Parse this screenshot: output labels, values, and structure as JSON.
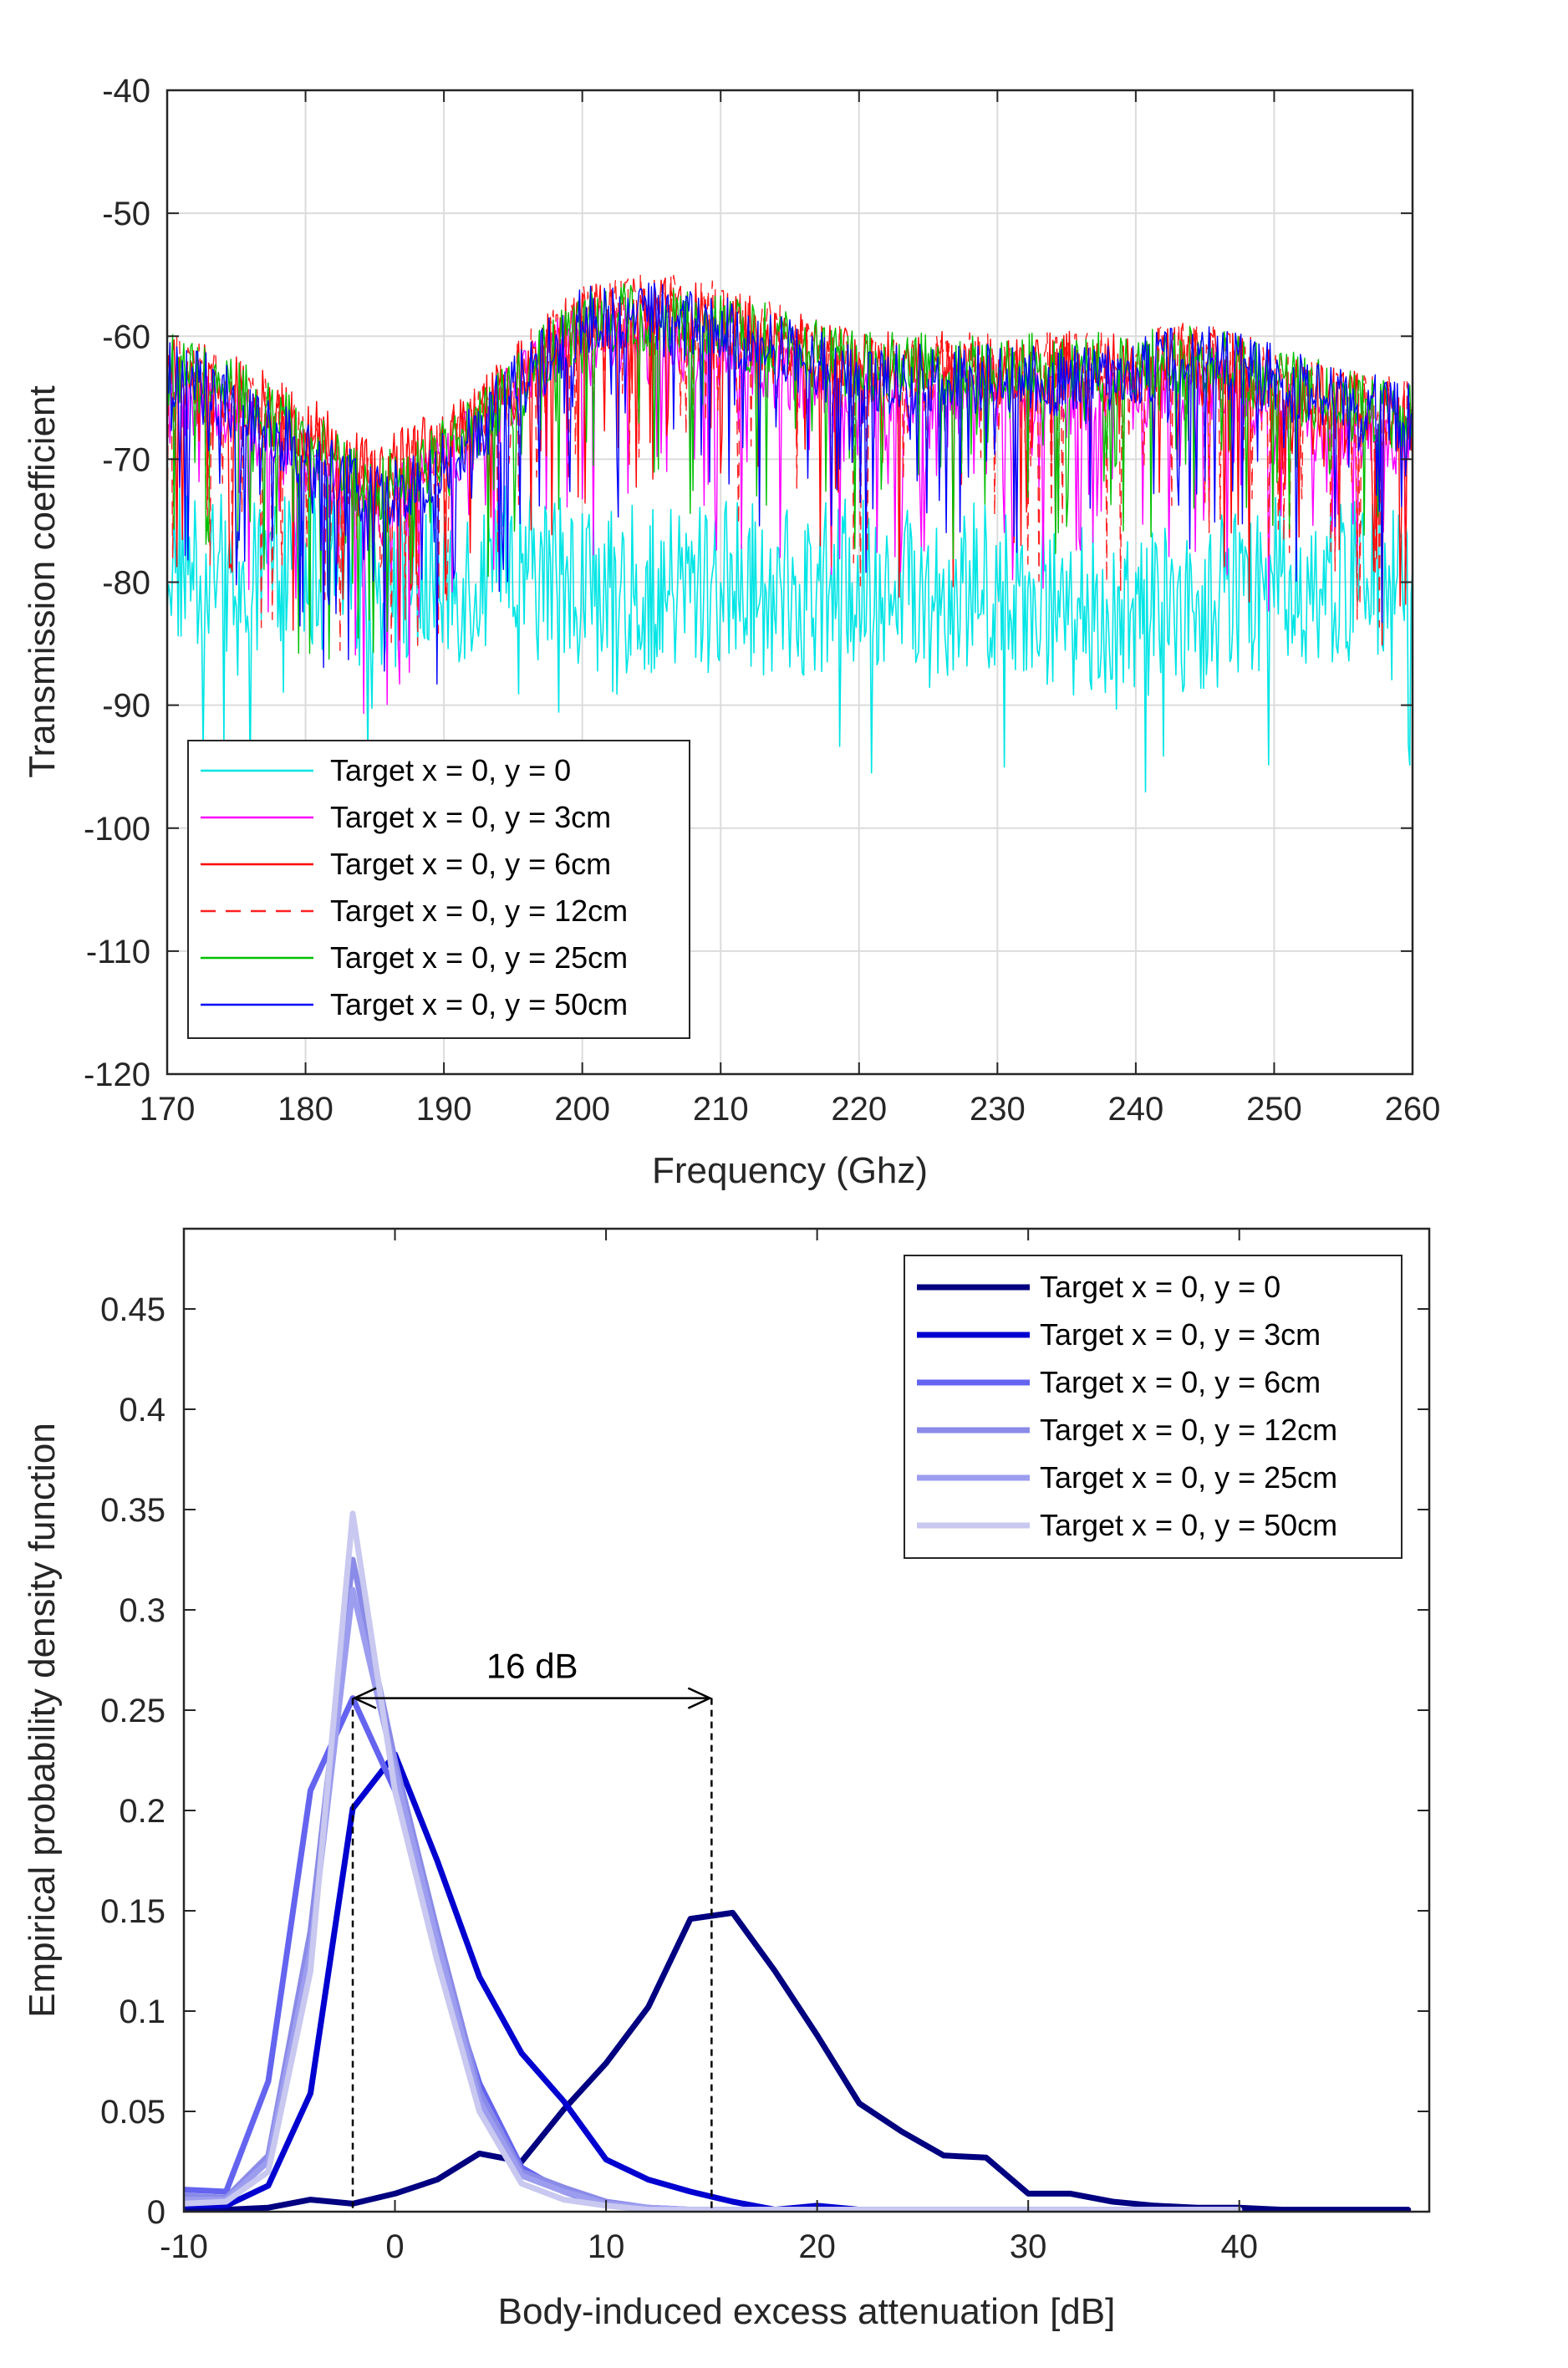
{
  "chart_data": [
    {
      "type": "line",
      "xlabel": "Frequency (Ghz)",
      "ylabel": "Transmission coefficient",
      "xlim": [
        170,
        260
      ],
      "ylim": [
        -120,
        -40
      ],
      "xticks": [
        170,
        180,
        190,
        200,
        210,
        220,
        230,
        240,
        250,
        260
      ],
      "yticks": [
        -40,
        -50,
        -60,
        -70,
        -80,
        -90,
        -100,
        -110,
        -120
      ],
      "grid": true,
      "legend_location": "bottom-left",
      "noise_note": "signals are dense noisy traces; envelope values below are approximate mean levels",
      "series": [
        {
          "name": "Target x = 0, y = 0",
          "color": "#00e5e5",
          "dash": "solid",
          "x": [
            170,
            175,
            180,
            185,
            190,
            195,
            200,
            205,
            210,
            215,
            220,
            225,
            230,
            235,
            240,
            245,
            250,
            255,
            260
          ],
          "y": [
            -78,
            -80,
            -79,
            -80,
            -80,
            -79,
            -80,
            -81,
            -80,
            -81,
            -80,
            -81,
            -80,
            -82,
            -83,
            -82,
            -80,
            -80,
            -79
          ]
        },
        {
          "name": "Target x = 0, y = 3cm",
          "color": "#ff00ff",
          "dash": "solid",
          "x": [
            170,
            175,
            180,
            185,
            190,
            195,
            200,
            205,
            210,
            215,
            220,
            225,
            230,
            235,
            240,
            245,
            250,
            255,
            260
          ],
          "y": [
            -64,
            -66,
            -70,
            -74,
            -70,
            -64,
            -59,
            -60,
            -61,
            -63,
            -65,
            -64,
            -64,
            -65,
            -64,
            -63,
            -65,
            -67,
            -68
          ]
        },
        {
          "name": "Target x = 0, y = 6cm",
          "color": "#ff0000",
          "dash": "solid",
          "x": [
            170,
            175,
            180,
            185,
            190,
            195,
            200,
            205,
            210,
            215,
            220,
            225,
            230,
            235,
            240,
            245,
            250,
            255,
            260
          ],
          "y": [
            -62,
            -64,
            -67,
            -71,
            -68,
            -63,
            -58,
            -57,
            -58,
            -60,
            -62,
            -62,
            -62,
            -62,
            -62,
            -61,
            -63,
            -65,
            -66
          ]
        },
        {
          "name": "Target x = 0, y = 12cm",
          "color": "#ff2020",
          "dash": "dashed",
          "x": [
            170,
            175,
            180,
            185,
            190,
            195,
            200,
            205,
            210,
            215,
            220,
            225,
            230,
            235,
            240,
            245,
            250,
            255,
            260
          ],
          "y": [
            -62,
            -64,
            -68,
            -72,
            -69,
            -63,
            -58,
            -57,
            -58,
            -60,
            -62,
            -62,
            -62,
            -62,
            -62,
            -61,
            -63,
            -65,
            -66
          ]
        },
        {
          "name": "Target x = 0, y = 25cm",
          "color": "#00c000",
          "dash": "solid",
          "x": [
            170,
            175,
            180,
            185,
            190,
            195,
            200,
            205,
            210,
            215,
            220,
            225,
            230,
            235,
            240,
            245,
            250,
            255,
            260
          ],
          "y": [
            -62,
            -64,
            -68,
            -72,
            -69,
            -64,
            -58,
            -58,
            -59,
            -60,
            -62,
            -62,
            -62,
            -62,
            -62,
            -61,
            -63,
            -65,
            -66
          ]
        },
        {
          "name": "Target x = 0, y = 50cm",
          "color": "#0000ff",
          "dash": "solid",
          "x": [
            170,
            175,
            180,
            185,
            190,
            195,
            200,
            205,
            210,
            215,
            220,
            225,
            230,
            235,
            240,
            245,
            250,
            255,
            260
          ],
          "y": [
            -62,
            -65,
            -69,
            -73,
            -70,
            -64,
            -58,
            -58,
            -59,
            -61,
            -63,
            -63,
            -63,
            -63,
            -62,
            -61,
            -63,
            -65,
            -66
          ]
        }
      ]
    },
    {
      "type": "line",
      "xlabel": "Body-induced excess attenuation [dB]",
      "ylabel": "Empirical probability density function",
      "xlim": [
        -10,
        49
      ],
      "ylim": [
        0,
        0.49
      ],
      "xticks": [
        -10,
        0,
        10,
        20,
        30,
        40
      ],
      "yticks": [
        0,
        0.05,
        0.1,
        0.15,
        0.2,
        0.25,
        0.3,
        0.35,
        0.4,
        0.45
      ],
      "grid": false,
      "legend_location": "top-right",
      "series": [
        {
          "name": "Target x = 0, y = 0",
          "color": "#000080",
          "x": [
            -10,
            -8,
            -6,
            -4,
            -2,
            0,
            2,
            4,
            6,
            8,
            10,
            12,
            14,
            16,
            18,
            20,
            22,
            24,
            26,
            28,
            30,
            32,
            34,
            36,
            38,
            40,
            42,
            44,
            46,
            48
          ],
          "y": [
            0.002,
            0.001,
            0.002,
            0.006,
            0.004,
            0.009,
            0.016,
            0.029,
            0.025,
            0.051,
            0.074,
            0.102,
            0.146,
            0.149,
            0.12,
            0.088,
            0.054,
            0.04,
            0.028,
            0.027,
            0.009,
            0.009,
            0.005,
            0.003,
            0.002,
            0.002,
            0.001,
            0.001,
            0.001,
            0.001
          ]
        },
        {
          "name": "Target x = 0, y = 3cm",
          "color": "#0000d0",
          "x": [
            -10,
            -8,
            -6,
            -4,
            -2,
            0,
            2,
            4,
            6,
            8,
            10,
            12,
            14,
            16,
            18,
            20,
            22,
            24,
            26,
            28,
            30,
            40
          ],
          "y": [
            0.003,
            0.003,
            0.013,
            0.059,
            0.201,
            0.228,
            0.175,
            0.117,
            0.079,
            0.055,
            0.026,
            0.016,
            0.01,
            0.005,
            0.001,
            0.003,
            0.001,
            0.001,
            0.001,
            0.001,
            0.001,
            0.001
          ]
        },
        {
          "name": "Target x = 0, y = 6cm",
          "color": "#6464f0",
          "x": [
            -10,
            -8,
            -6,
            -4,
            -2,
            0,
            2,
            4,
            6,
            8,
            10,
            12,
            14,
            16,
            20,
            30,
            40
          ],
          "y": [
            0.011,
            0.01,
            0.065,
            0.21,
            0.256,
            0.21,
            0.13,
            0.064,
            0.022,
            0.01,
            0.003,
            0.002,
            0.001,
            0.001,
            0.001,
            0.001,
            0.001
          ]
        },
        {
          "name": "Target x = 0, y = 12cm",
          "color": "#8a8ae8",
          "x": [
            -10,
            -8,
            -6,
            -4,
            -2,
            0,
            2,
            4,
            6,
            8,
            10,
            12,
            14,
            16,
            20,
            30,
            40
          ],
          "y": [
            0.008,
            0.007,
            0.028,
            0.14,
            0.325,
            0.225,
            0.14,
            0.06,
            0.02,
            0.012,
            0.005,
            0.002,
            0.001,
            0.001,
            0.001,
            0.001,
            0.001
          ]
        },
        {
          "name": "Target x = 0, y = 25cm",
          "color": "#9d9df0",
          "x": [
            -10,
            -8,
            -6,
            -4,
            -2,
            0,
            2,
            4,
            6,
            8,
            10,
            12,
            14,
            16,
            20,
            30,
            40
          ],
          "y": [
            0.006,
            0.006,
            0.025,
            0.13,
            0.31,
            0.22,
            0.135,
            0.055,
            0.018,
            0.01,
            0.004,
            0.002,
            0.001,
            0.001,
            0.001,
            0.001,
            0.001
          ]
        },
        {
          "name": "Target x = 0, y = 50cm",
          "color": "#c8c8f0",
          "x": [
            -10,
            -8,
            -6,
            -4,
            -2,
            0,
            2,
            4,
            6,
            8,
            10,
            12,
            14,
            16,
            20,
            30,
            40
          ],
          "y": [
            0.004,
            0.005,
            0.02,
            0.12,
            0.348,
            0.21,
            0.125,
            0.05,
            0.014,
            0.006,
            0.003,
            0.001,
            0.001,
            0.001,
            0.001,
            0.001,
            0.001
          ]
        }
      ],
      "annotations": [
        {
          "text": "16 dB",
          "type": "double-arrow",
          "x_from": -2,
          "x_to": 15,
          "y": 0.256
        },
        {
          "type": "vline-dashed",
          "x": -2,
          "y_top": 0.256
        },
        {
          "type": "vline-dashed",
          "x": 15,
          "y_top": 0.256
        }
      ]
    }
  ]
}
